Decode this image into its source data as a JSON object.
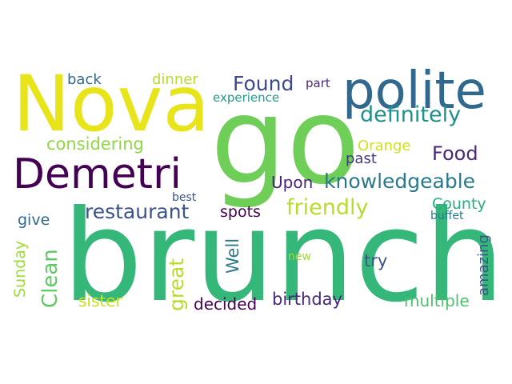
{
  "words": [
    {
      "text": "brunch",
      "color": "#35b779"
    },
    {
      "text": "go",
      "color": "#6ece58"
    },
    {
      "text": "Nova",
      "color": "#e7e419"
    },
    {
      "text": "polite",
      "color": "#31688e"
    },
    {
      "text": "Demetri",
      "color": "#440154"
    },
    {
      "text": "definitely",
      "color": "#21918c"
    },
    {
      "text": "knowledgeable",
      "color": "#2a788e"
    },
    {
      "text": "restaurant",
      "color": "#3b528b"
    },
    {
      "text": "friendly",
      "color": "#b5de2b"
    },
    {
      "text": "Found",
      "color": "#3e4989"
    },
    {
      "text": "Food",
      "color": "#482878"
    },
    {
      "text": "considering",
      "color": "#90d743"
    },
    {
      "text": "Clean",
      "color": "#5ec962"
    },
    {
      "text": "great",
      "color": "#b5de2b"
    },
    {
      "text": "birthday",
      "color": "#482878"
    },
    {
      "text": "decided",
      "color": "#440154"
    },
    {
      "text": "multiple",
      "color": "#4ac16d"
    },
    {
      "text": "Upon",
      "color": "#482475"
    },
    {
      "text": "Orange",
      "color": "#d0e11c"
    },
    {
      "text": "past",
      "color": "#443983"
    },
    {
      "text": "County",
      "color": "#26ad81"
    },
    {
      "text": "amazing",
      "color": "#3b528b"
    },
    {
      "text": "sister",
      "color": "#c8e020"
    },
    {
      "text": "Sunday",
      "color": "#a0da39"
    },
    {
      "text": "spots",
      "color": "#440154"
    },
    {
      "text": "Well",
      "color": "#2a788e"
    },
    {
      "text": "try",
      "color": "#3b528b"
    },
    {
      "text": "give",
      "color": "#31688e"
    },
    {
      "text": "dinner",
      "color": "#b5de2b"
    },
    {
      "text": "back",
      "color": "#31688e"
    },
    {
      "text": "experience",
      "color": "#1f9e89"
    },
    {
      "text": "part",
      "color": "#482878"
    },
    {
      "text": "best",
      "color": "#3b528b"
    },
    {
      "text": "buffet",
      "color": "#2a788e"
    },
    {
      "text": "new",
      "color": "#a0da39"
    }
  ]
}
